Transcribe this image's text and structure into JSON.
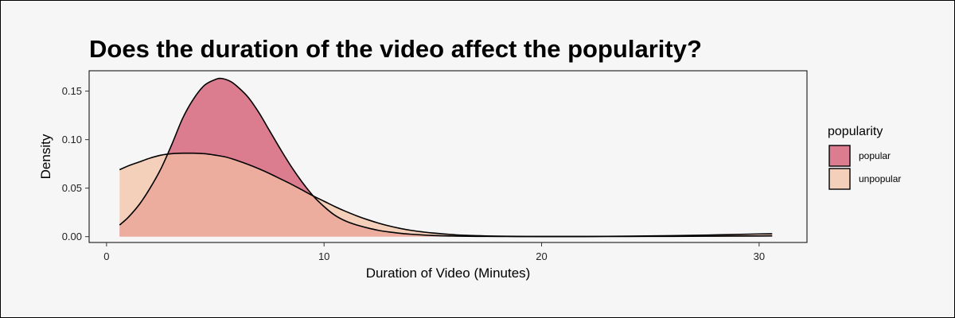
{
  "chart_data": {
    "type": "area",
    "title": "Does the duration of the video affect the popularity?",
    "xlabel": "Duration of Video (Minutes)",
    "ylabel": "Density",
    "xlim": [
      -0.8,
      32.2
    ],
    "ylim": [
      -0.006,
      0.171
    ],
    "xticks": [
      0,
      10,
      20,
      30
    ],
    "xtick_labels": [
      "0",
      "10",
      "20",
      "30"
    ],
    "yticks": [
      0.0,
      0.05,
      0.1,
      0.15
    ],
    "ytick_labels": [
      "0.00",
      "0.05",
      "0.10",
      "0.15"
    ],
    "grid": false,
    "legend": {
      "title": "popularity",
      "placement": "right"
    },
    "series": [
      {
        "name": "popular",
        "color": "#d35a72",
        "opacity": 0.78,
        "x": [
          0.6,
          1,
          1.5,
          2,
          2.5,
          3,
          3.5,
          4,
          4.5,
          5,
          5.3,
          5.7,
          6,
          6.5,
          7,
          7.5,
          8,
          8.5,
          9,
          9.5,
          10,
          10.5,
          11,
          11.5,
          12,
          12.5,
          13,
          13.5,
          14,
          15,
          16,
          17,
          18,
          19,
          20,
          22,
          24,
          26,
          28,
          30,
          30.6
        ],
        "y": [
          0.012,
          0.02,
          0.033,
          0.05,
          0.07,
          0.095,
          0.122,
          0.142,
          0.156,
          0.162,
          0.163,
          0.16,
          0.155,
          0.144,
          0.128,
          0.109,
          0.09,
          0.072,
          0.056,
          0.042,
          0.031,
          0.022,
          0.016,
          0.012,
          0.009,
          0.0065,
          0.0048,
          0.0035,
          0.0025,
          0.0012,
          0.0006,
          0.0003,
          0.0002,
          0.0001,
          0.0001,
          0.0001,
          0.0002,
          0.0003,
          0.0005,
          0.0007,
          0.0008
        ]
      },
      {
        "name": "unpopular",
        "color": "#f2c1a4",
        "opacity": 0.72,
        "x": [
          0.6,
          1,
          1.5,
          2,
          2.5,
          3,
          3.5,
          4,
          4.5,
          5,
          5.5,
          6,
          6.5,
          7,
          7.5,
          8,
          8.5,
          9,
          9.5,
          10,
          10.5,
          11,
          11.5,
          12,
          12.5,
          13,
          13.5,
          14,
          14.5,
          15,
          16,
          17,
          18,
          19,
          20,
          22,
          24,
          26,
          28,
          30,
          30.6
        ],
        "y": [
          0.069,
          0.073,
          0.077,
          0.081,
          0.084,
          0.0855,
          0.086,
          0.086,
          0.0855,
          0.084,
          0.082,
          0.0785,
          0.0745,
          0.07,
          0.065,
          0.0595,
          0.054,
          0.048,
          0.042,
          0.0365,
          0.031,
          0.026,
          0.0215,
          0.0175,
          0.014,
          0.011,
          0.0085,
          0.0065,
          0.005,
          0.0038,
          0.002,
          0.001,
          0.0005,
          0.0003,
          0.0002,
          0.0002,
          0.0005,
          0.001,
          0.0018,
          0.0028,
          0.003
        ]
      }
    ]
  }
}
